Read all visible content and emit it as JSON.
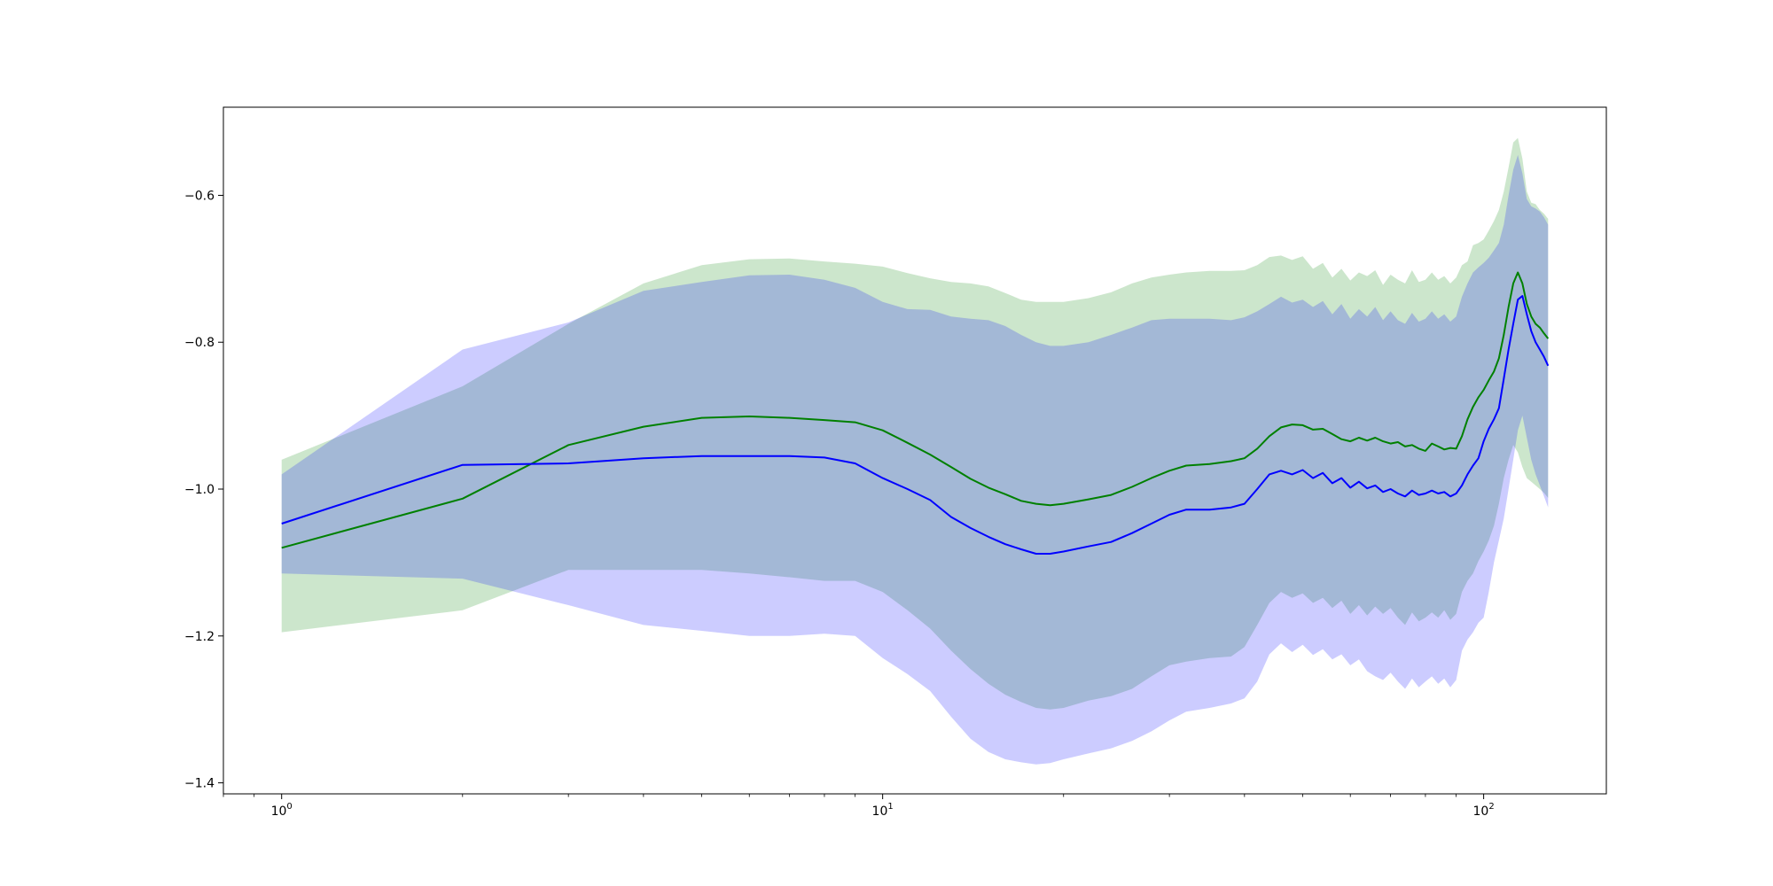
{
  "chart_data": {
    "type": "line",
    "title": "",
    "xlabel": "",
    "ylabel": "",
    "x_scale": "log",
    "xlim": [
      0.8,
      160
    ],
    "ylim": [
      -1.415,
      -0.48
    ],
    "grid": false,
    "x_ticks": [
      {
        "value": 1,
        "base": "10",
        "exp": "0"
      },
      {
        "value": 10,
        "base": "10",
        "exp": "1"
      },
      {
        "value": 100,
        "base": "10",
        "exp": "2"
      }
    ],
    "x_minor_ticks": [
      0.8,
      0.9,
      2,
      3,
      4,
      5,
      6,
      7,
      8,
      9,
      20,
      30,
      40,
      50,
      60,
      70,
      80,
      90
    ],
    "y_ticks": [
      {
        "value": -1.4,
        "label": "−1.4"
      },
      {
        "value": -1.2,
        "label": "−1.2"
      },
      {
        "value": -1.0,
        "label": "−1.0"
      },
      {
        "value": -0.8,
        "label": "−0.8"
      },
      {
        "value": -0.6,
        "label": "−0.6"
      }
    ],
    "series": [
      {
        "color": "#008000",
        "band_color": "#008000",
        "band_opacity": 0.2,
        "x": [
          1,
          2,
          3,
          4,
          5,
          6,
          7,
          8,
          9,
          10,
          11,
          12,
          13,
          14,
          15,
          16,
          17,
          18,
          19,
          20,
          22,
          24,
          26,
          28,
          30,
          32,
          35,
          38,
          40,
          42,
          44,
          46,
          48,
          50,
          52,
          54,
          56,
          58,
          60,
          62,
          64,
          66,
          68,
          70,
          72,
          74,
          76,
          78,
          80,
          82,
          84,
          86,
          88,
          90,
          92,
          94,
          96,
          98,
          100,
          102,
          104,
          106,
          108,
          110,
          112,
          114,
          116,
          118,
          120,
          122,
          124,
          126,
          128
        ],
        "mean": [
          -1.08,
          -1.013,
          -0.94,
          -0.915,
          -0.903,
          -0.901,
          -0.903,
          -0.906,
          -0.909,
          -0.92,
          -0.937,
          -0.953,
          -0.97,
          -0.986,
          -0.998,
          -1.007,
          -1.016,
          -1.02,
          -1.022,
          -1.02,
          -1.014,
          -1.008,
          -0.997,
          -0.985,
          -0.975,
          -0.968,
          -0.966,
          -0.962,
          -0.958,
          -0.945,
          -0.928,
          -0.916,
          -0.912,
          -0.913,
          -0.919,
          -0.918,
          -0.925,
          -0.932,
          -0.935,
          -0.93,
          -0.934,
          -0.93,
          -0.935,
          -0.938,
          -0.936,
          -0.942,
          -0.94,
          -0.945,
          -0.948,
          -0.938,
          -0.942,
          -0.946,
          -0.944,
          -0.945,
          -0.928,
          -0.905,
          -0.888,
          -0.875,
          -0.865,
          -0.852,
          -0.84,
          -0.822,
          -0.79,
          -0.752,
          -0.72,
          -0.705,
          -0.72,
          -0.748,
          -0.765,
          -0.775,
          -0.78,
          -0.788,
          -0.795
        ],
        "upper": [
          -0.96,
          -0.86,
          -0.775,
          -0.72,
          -0.695,
          -0.687,
          -0.686,
          -0.69,
          -0.693,
          -0.697,
          -0.706,
          -0.713,
          -0.718,
          -0.72,
          -0.724,
          -0.733,
          -0.742,
          -0.745,
          -0.745,
          -0.745,
          -0.74,
          -0.732,
          -0.72,
          -0.712,
          -0.708,
          -0.705,
          -0.703,
          -0.703,
          -0.702,
          -0.695,
          -0.684,
          -0.682,
          -0.688,
          -0.683,
          -0.7,
          -0.692,
          -0.712,
          -0.7,
          -0.716,
          -0.705,
          -0.71,
          -0.702,
          -0.722,
          -0.708,
          -0.715,
          -0.72,
          -0.702,
          -0.718,
          -0.715,
          -0.705,
          -0.715,
          -0.71,
          -0.72,
          -0.712,
          -0.695,
          -0.69,
          -0.668,
          -0.665,
          -0.66,
          -0.648,
          -0.635,
          -0.62,
          -0.595,
          -0.562,
          -0.528,
          -0.522,
          -0.55,
          -0.595,
          -0.61,
          -0.612,
          -0.62,
          -0.625,
          -0.632
        ],
        "lower": [
          -1.195,
          -1.165,
          -1.11,
          -1.11,
          -1.11,
          -1.115,
          -1.12,
          -1.125,
          -1.125,
          -1.14,
          -1.165,
          -1.19,
          -1.22,
          -1.245,
          -1.265,
          -1.28,
          -1.29,
          -1.298,
          -1.3,
          -1.298,
          -1.288,
          -1.282,
          -1.272,
          -1.255,
          -1.24,
          -1.235,
          -1.23,
          -1.228,
          -1.215,
          -1.185,
          -1.155,
          -1.14,
          -1.148,
          -1.142,
          -1.155,
          -1.148,
          -1.162,
          -1.152,
          -1.17,
          -1.158,
          -1.172,
          -1.16,
          -1.17,
          -1.162,
          -1.175,
          -1.185,
          -1.168,
          -1.18,
          -1.175,
          -1.168,
          -1.175,
          -1.165,
          -1.178,
          -1.17,
          -1.14,
          -1.125,
          -1.115,
          -1.098,
          -1.085,
          -1.07,
          -1.05,
          -1.02,
          -0.985,
          -0.96,
          -0.94,
          -0.95,
          -0.97,
          -0.985,
          -0.99,
          -0.995,
          -1.0,
          -1.005,
          -1.012
        ]
      },
      {
        "color": "#0000ff",
        "band_color": "#0000ff",
        "band_opacity": 0.2,
        "x": [
          1,
          2,
          3,
          4,
          5,
          6,
          7,
          8,
          9,
          10,
          11,
          12,
          13,
          14,
          15,
          16,
          17,
          18,
          19,
          20,
          22,
          24,
          26,
          28,
          30,
          32,
          35,
          38,
          40,
          42,
          44,
          46,
          48,
          50,
          52,
          54,
          56,
          58,
          60,
          62,
          64,
          66,
          68,
          70,
          72,
          74,
          76,
          78,
          80,
          82,
          84,
          86,
          88,
          90,
          92,
          94,
          96,
          98,
          100,
          102,
          104,
          106,
          108,
          110,
          112,
          114,
          116,
          118,
          120,
          122,
          124,
          126,
          128
        ],
        "mean": [
          -1.047,
          -0.967,
          -0.965,
          -0.958,
          -0.955,
          -0.955,
          -0.955,
          -0.957,
          -0.965,
          -0.985,
          -1.0,
          -1.015,
          -1.038,
          -1.053,
          -1.065,
          -1.075,
          -1.082,
          -1.088,
          -1.088,
          -1.085,
          -1.078,
          -1.072,
          -1.06,
          -1.047,
          -1.035,
          -1.028,
          -1.028,
          -1.025,
          -1.02,
          -1.0,
          -0.98,
          -0.975,
          -0.98,
          -0.974,
          -0.985,
          -0.978,
          -0.992,
          -0.985,
          -0.998,
          -0.99,
          -0.999,
          -0.995,
          -1.004,
          -1.0,
          -1.006,
          -1.01,
          -1.002,
          -1.008,
          -1.006,
          -1.002,
          -1.006,
          -1.004,
          -1.01,
          -1.006,
          -0.995,
          -0.98,
          -0.968,
          -0.958,
          -0.935,
          -0.918,
          -0.905,
          -0.89,
          -0.85,
          -0.81,
          -0.775,
          -0.742,
          -0.737,
          -0.762,
          -0.785,
          -0.8,
          -0.81,
          -0.82,
          -0.832
        ],
        "upper": [
          -0.98,
          -0.81,
          -0.773,
          -0.73,
          -0.718,
          -0.709,
          -0.708,
          -0.715,
          -0.726,
          -0.745,
          -0.755,
          -0.756,
          -0.765,
          -0.768,
          -0.77,
          -0.778,
          -0.79,
          -0.8,
          -0.805,
          -0.805,
          -0.8,
          -0.79,
          -0.78,
          -0.77,
          -0.768,
          -0.768,
          -0.768,
          -0.77,
          -0.766,
          -0.758,
          -0.748,
          -0.738,
          -0.746,
          -0.742,
          -0.752,
          -0.744,
          -0.762,
          -0.748,
          -0.768,
          -0.755,
          -0.765,
          -0.752,
          -0.77,
          -0.758,
          -0.77,
          -0.775,
          -0.76,
          -0.772,
          -0.768,
          -0.758,
          -0.768,
          -0.762,
          -0.772,
          -0.765,
          -0.738,
          -0.72,
          -0.705,
          -0.698,
          -0.692,
          -0.685,
          -0.675,
          -0.665,
          -0.64,
          -0.6,
          -0.565,
          -0.545,
          -0.57,
          -0.605,
          -0.615,
          -0.618,
          -0.622,
          -0.63,
          -0.64
        ],
        "lower": [
          -1.115,
          -1.122,
          -1.158,
          -1.185,
          -1.193,
          -1.2,
          -1.2,
          -1.197,
          -1.2,
          -1.23,
          -1.252,
          -1.275,
          -1.31,
          -1.34,
          -1.358,
          -1.368,
          -1.372,
          -1.375,
          -1.373,
          -1.368,
          -1.36,
          -1.353,
          -1.343,
          -1.33,
          -1.315,
          -1.303,
          -1.298,
          -1.292,
          -1.285,
          -1.262,
          -1.225,
          -1.21,
          -1.222,
          -1.212,
          -1.226,
          -1.218,
          -1.232,
          -1.225,
          -1.24,
          -1.232,
          -1.248,
          -1.255,
          -1.26,
          -1.25,
          -1.262,
          -1.272,
          -1.258,
          -1.27,
          -1.262,
          -1.255,
          -1.265,
          -1.258,
          -1.27,
          -1.26,
          -1.22,
          -1.205,
          -1.195,
          -1.182,
          -1.175,
          -1.14,
          -1.1,
          -1.07,
          -1.04,
          -1.0,
          -0.96,
          -0.92,
          -0.9,
          -0.93,
          -0.96,
          -0.98,
          -0.995,
          -1.01,
          -1.025
        ]
      }
    ]
  }
}
